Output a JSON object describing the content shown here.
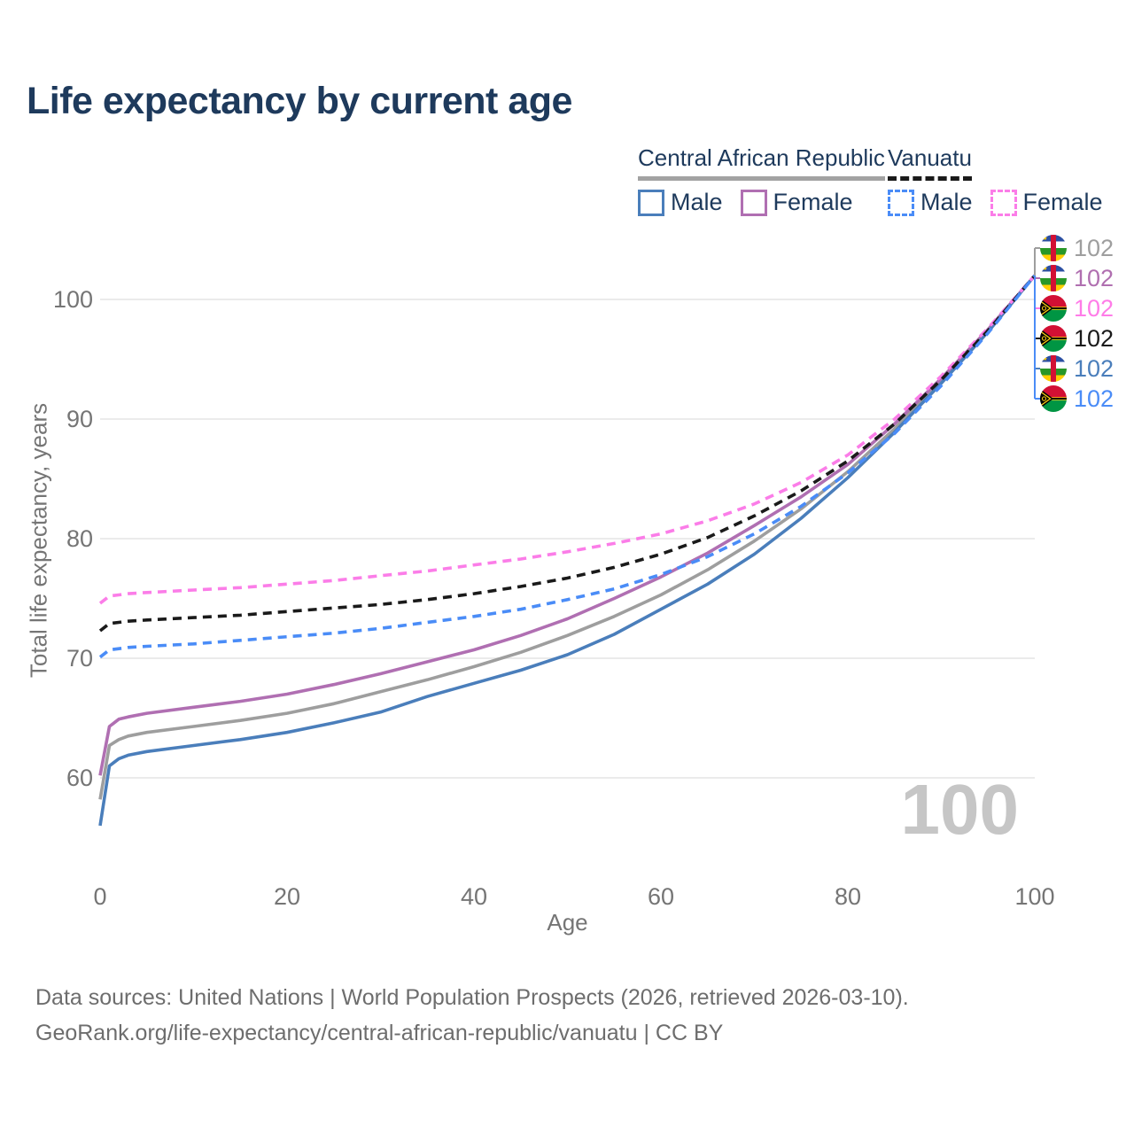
{
  "title": "Life expectancy by current age",
  "legend": {
    "groups": [
      {
        "label": "Central African Republic",
        "style": "solid",
        "items": [
          {
            "label": "Male",
            "color": "#4a7ebb"
          },
          {
            "label": "Female",
            "color": "#b06fb2"
          }
        ]
      },
      {
        "label": "Vanuatu",
        "style": "dashed",
        "items": [
          {
            "label": "Male",
            "color": "#4a8cf7"
          },
          {
            "label": "Female",
            "color": "#fb7de8"
          }
        ]
      }
    ]
  },
  "axes": {
    "x_label": "Age",
    "y_label": "Total life expectancy, years"
  },
  "watermark": "100",
  "footer": {
    "line1": "Data sources: United Nations | World Population Prospects (2026, retrieved 2026-03-10).",
    "line2": "GeoRank.org/life-expectancy/central-african-republic/vanuatu | CC BY"
  },
  "colors": {
    "grid": "#ebebeb",
    "tick_text": "#757575",
    "title_text": "#1e3a5c",
    "watermark": "#c6c6c6",
    "leader_top": "#9e9e9e",
    "leader_bottom": "#4a8cf7"
  },
  "chart_data": {
    "type": "line",
    "title": "Life expectancy by current age",
    "xlabel": "Age",
    "ylabel": "Total life expectancy, years",
    "xlim": [
      0,
      100
    ],
    "ylim": [
      55,
      103
    ],
    "xticks": [
      0,
      20,
      40,
      60,
      80,
      100
    ],
    "yticks": [
      60,
      70,
      80,
      90,
      100
    ],
    "grid": "horizontal",
    "legend_position": "top-right",
    "x": [
      0,
      1,
      2,
      3,
      5,
      10,
      15,
      20,
      25,
      30,
      35,
      40,
      45,
      50,
      55,
      60,
      65,
      70,
      75,
      80,
      85,
      90,
      95,
      100
    ],
    "series": [
      {
        "id": "car-total",
        "name": "Central African Republic Total",
        "country": "Central African Republic",
        "sex": "Total",
        "dash": false,
        "color": "#9e9e9e",
        "label_color": "#9e9e9e",
        "flag": "car",
        "end_label": "102",
        "values": [
          58.2,
          62.7,
          63.2,
          63.5,
          63.8,
          64.3,
          64.8,
          65.4,
          66.2,
          67.2,
          68.2,
          69.3,
          70.5,
          71.9,
          73.5,
          75.3,
          77.4,
          79.8,
          82.5,
          85.6,
          89.2,
          93.2,
          97.4,
          102
        ]
      },
      {
        "id": "car-female",
        "name": "Central African Republic Female",
        "country": "Central African Republic",
        "sex": "Female",
        "dash": false,
        "color": "#b06fb2",
        "label_color": "#b06fb0",
        "flag": "car",
        "end_label": "102",
        "values": [
          60.2,
          64.3,
          64.9,
          65.1,
          65.4,
          65.9,
          66.4,
          67.0,
          67.8,
          68.7,
          69.7,
          70.7,
          71.9,
          73.3,
          75.0,
          76.8,
          78.8,
          81.1,
          83.5,
          86.2,
          89.6,
          93.4,
          97.5,
          102
        ]
      },
      {
        "id": "vu-female",
        "name": "Vanuatu Female",
        "country": "Vanuatu",
        "sex": "Female",
        "dash": true,
        "color": "#fb7de8",
        "label_color": "#ff7ce8",
        "flag": "vu",
        "end_label": "102",
        "values": [
          74.6,
          75.2,
          75.3,
          75.4,
          75.5,
          75.7,
          75.9,
          76.2,
          76.5,
          76.9,
          77.3,
          77.8,
          78.3,
          78.9,
          79.6,
          80.4,
          81.5,
          82.9,
          84.7,
          87.0,
          90.0,
          93.6,
          97.6,
          102
        ]
      },
      {
        "id": "vu-total",
        "name": "Vanuatu Total",
        "country": "Vanuatu",
        "sex": "Total",
        "dash": true,
        "color": "#1a1a1a",
        "label_color": "#1a1a1a",
        "flag": "vu",
        "end_label": "102",
        "values": [
          72.3,
          72.9,
          73.0,
          73.1,
          73.2,
          73.4,
          73.6,
          73.9,
          74.2,
          74.5,
          74.9,
          75.4,
          76.0,
          76.7,
          77.6,
          78.7,
          80.1,
          81.9,
          84.0,
          86.5,
          89.6,
          93.3,
          97.4,
          102
        ]
      },
      {
        "id": "car-male",
        "name": "Central African Republic Male",
        "country": "Central African Republic",
        "sex": "Male",
        "dash": false,
        "color": "#4a7ebb",
        "label_color": "#4a7ebb",
        "flag": "car",
        "end_label": "102",
        "values": [
          56.0,
          61.0,
          61.6,
          61.9,
          62.2,
          62.7,
          63.2,
          63.8,
          64.6,
          65.5,
          66.8,
          67.9,
          69.0,
          70.3,
          72.0,
          74.1,
          76.2,
          78.7,
          81.7,
          85.1,
          88.9,
          93.0,
          97.3,
          102
        ]
      },
      {
        "id": "vu-male",
        "name": "Vanuatu Male",
        "country": "Vanuatu",
        "sex": "Male",
        "dash": true,
        "color": "#4a8cf7",
        "label_color": "#4a8cf7",
        "flag": "vu",
        "end_label": "102",
        "values": [
          70.1,
          70.7,
          70.8,
          70.9,
          71.0,
          71.2,
          71.5,
          71.8,
          72.1,
          72.5,
          73.0,
          73.5,
          74.1,
          74.9,
          75.8,
          77.0,
          78.5,
          80.4,
          82.7,
          85.5,
          88.8,
          92.8,
          97.2,
          102
        ]
      }
    ]
  }
}
